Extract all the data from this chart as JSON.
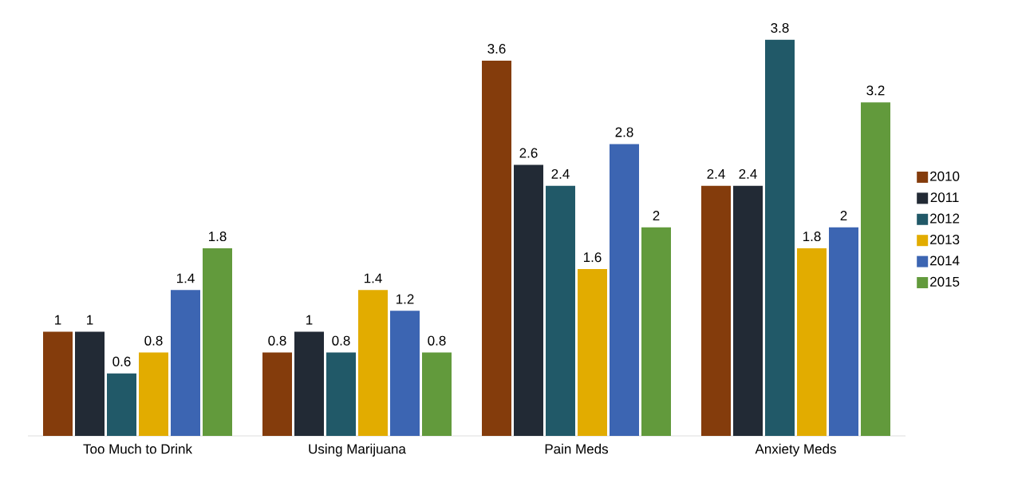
{
  "chart_data": {
    "type": "bar",
    "categories": [
      "Too Much to Drink",
      "Using Marijuana",
      "Pain Meds",
      "Anxiety Meds"
    ],
    "data_labels": true,
    "legend": "right",
    "series": [
      {
        "name": "2010",
        "color": "#843c0c",
        "values": [
          1,
          0.8,
          3.6,
          2.4
        ]
      },
      {
        "name": "2011",
        "color": "#222a35",
        "values": [
          1,
          1,
          2.6,
          2.4
        ]
      },
      {
        "name": "2012",
        "color": "#215968",
        "values": [
          0.6,
          0.8,
          2.4,
          3.8
        ]
      },
      {
        "name": "2013",
        "color": "#e2ac00",
        "values": [
          0.8,
          1.4,
          1.6,
          1.8
        ]
      },
      {
        "name": "2014",
        "color": "#3c65b2",
        "values": [
          1.4,
          1.2,
          2.8,
          2
        ]
      },
      {
        "name": "2015",
        "color": "#629a3c",
        "values": [
          1.8,
          0.8,
          2,
          3.2
        ]
      }
    ]
  }
}
